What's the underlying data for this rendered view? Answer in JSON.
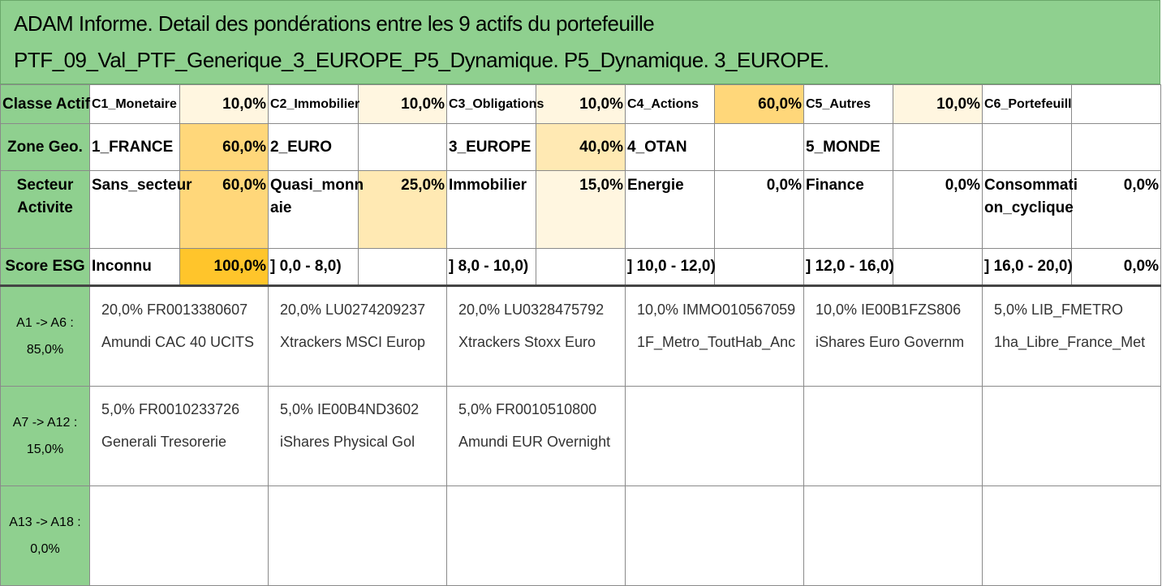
{
  "title": "ADAM Informe. Detail des pondérations entre les 9 actifs du portefeuille PTF_09_Val_PTF_Generique_3_EUROPE_P5_Dynamique. P5_Dynamique. 3_EUROPE.",
  "rows": {
    "classe": {
      "header": "Classe Actif",
      "cells": [
        {
          "label": "C1_Monetaire",
          "pct": "10,0%"
        },
        {
          "label": "C2_Immobilier",
          "pct": "10,0%"
        },
        {
          "label": "C3_Obligations",
          "pct": "10,0%"
        },
        {
          "label": "C4_Actions",
          "pct": "60,0%"
        },
        {
          "label": "C5_Autres",
          "pct": "10,0%"
        },
        {
          "label": "C6_Portefeuill",
          "pct": ""
        }
      ]
    },
    "zone": {
      "header": "Zone Geo.",
      "cells": [
        {
          "label": "1_FRANCE",
          "pct": "60,0%"
        },
        {
          "label": "2_EURO",
          "pct": ""
        },
        {
          "label": "3_EUROPE",
          "pct": "40,0%"
        },
        {
          "label": "4_OTAN",
          "pct": ""
        },
        {
          "label": "5_MONDE",
          "pct": ""
        },
        {
          "label": "",
          "pct": ""
        }
      ]
    },
    "secteur": {
      "header": "Secteur Activite",
      "cells": [
        {
          "label": "Sans_secteur",
          "pct": "60,0%"
        },
        {
          "label": "Quasi_monn aie",
          "pct": "25,0%"
        },
        {
          "label": "Immobilier",
          "pct": "15,0%"
        },
        {
          "label": "Energie",
          "pct": "0,0%"
        },
        {
          "label": "Finance",
          "pct": "0,0%"
        },
        {
          "label": "Consommati on_cyclique",
          "pct": "0,0%"
        }
      ]
    },
    "esg": {
      "header": "Score ESG",
      "cells": [
        {
          "label": "Inconnu",
          "pct": "100,0%"
        },
        {
          "label": "] 0,0 - 8,0)",
          "pct": ""
        },
        {
          "label": "] 8,0 - 10,0)",
          "pct": ""
        },
        {
          "label": "] 10,0 - 12,0)",
          "pct": ""
        },
        {
          "label": "] 12,0 - 16,0)",
          "pct": ""
        },
        {
          "label": "] 16,0 - 20,0)",
          "pct": "0,0%"
        }
      ]
    }
  },
  "asset_rows": [
    {
      "label_line1": "A1 -> A6 :",
      "label_line2": "85,0%",
      "assets": [
        {
          "line1": "20,0% FR0013380607",
          "line2": "Amundi CAC 40 UCITS"
        },
        {
          "line1": "20,0% LU0274209237",
          "line2": "Xtrackers MSCI Europ"
        },
        {
          "line1": "20,0% LU0328475792",
          "line2": "Xtrackers Stoxx Euro"
        },
        {
          "line1": "10,0% IMMO010567059",
          "line2": "1F_Metro_ToutHab_Anc"
        },
        {
          "line1": "10,0% IE00B1FZS806",
          "line2": "iShares Euro Governm"
        },
        {
          "line1": "5,0% LIB_FMETRO",
          "line2": "1ha_Libre_France_Met"
        }
      ]
    },
    {
      "label_line1": "A7 -> A12 :",
      "label_line2": "15,0%",
      "assets": [
        {
          "line1": "5,0% FR0010233726",
          "line2": "Generali Tresorerie"
        },
        {
          "line1": "5,0% IE00B4ND3602",
          "line2": "iShares Physical Gol"
        },
        {
          "line1": "5,0% FR0010510800",
          "line2": "Amundi EUR Overnight"
        },
        {
          "line1": "",
          "line2": ""
        },
        {
          "line1": "",
          "line2": ""
        },
        {
          "line1": "",
          "line2": ""
        }
      ]
    },
    {
      "label_line1": "A13 -> A18 :",
      "label_line2": "0,0%",
      "assets": [
        {
          "line1": "",
          "line2": ""
        },
        {
          "line1": "",
          "line2": ""
        },
        {
          "line1": "",
          "line2": ""
        },
        {
          "line1": "",
          "line2": ""
        },
        {
          "line1": "",
          "line2": ""
        },
        {
          "line1": "",
          "line2": ""
        }
      ]
    }
  ],
  "colors": {
    "header_green": "#8fd08f",
    "heat_0": "#ffffff",
    "heat_10": "#fff6e0",
    "heat_25": "#ffe9b3",
    "heat_40": "#ffd77a",
    "heat_60": "#ffd77a",
    "heat_100": "#ffc52b"
  }
}
